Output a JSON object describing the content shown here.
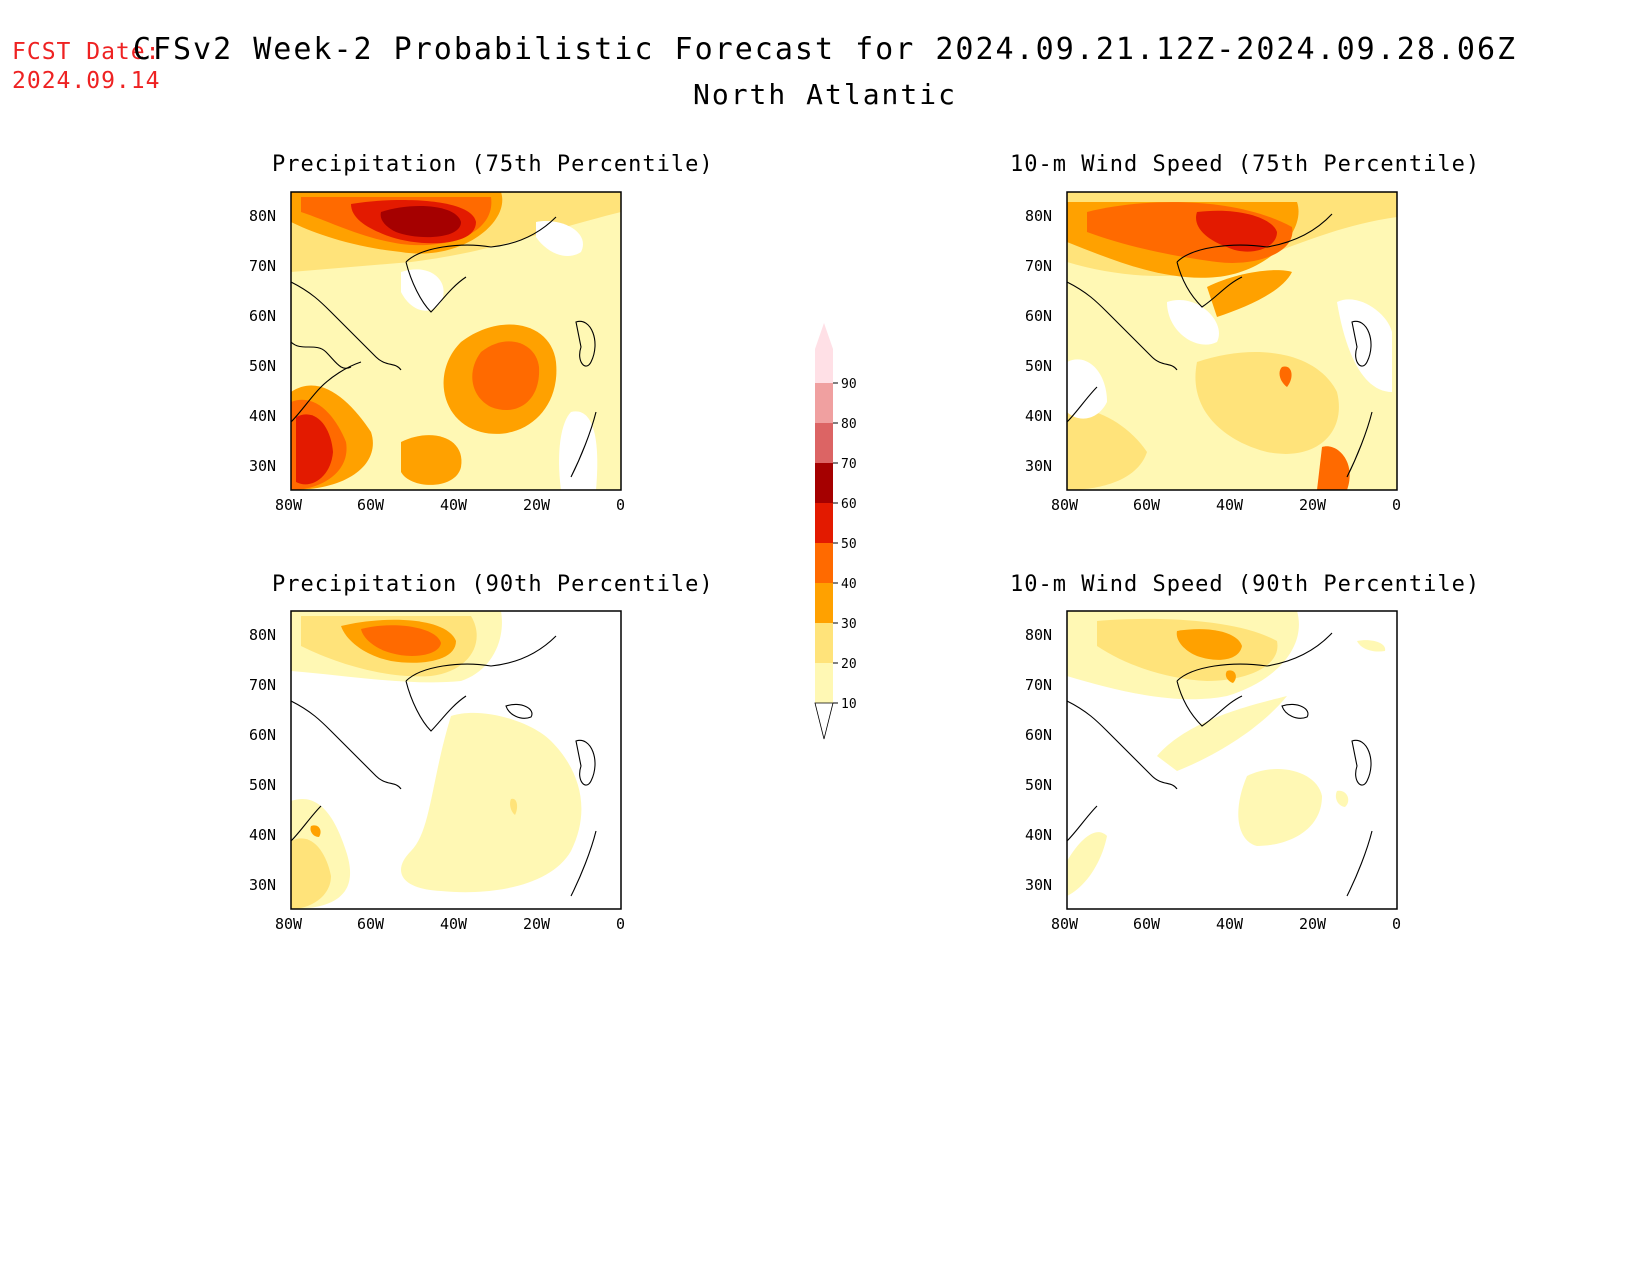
{
  "header": {
    "fcst_label": "FCST Date:",
    "fcst_date": "2024.09.14",
    "title": "CFSv2 Week-2 Probabilistic Forecast for 2024.09.21.12Z-2024.09.28.06Z",
    "subtitle": "North Atlantic"
  },
  "axes": {
    "lat_ticks": [
      "80N",
      "70N",
      "60N",
      "50N",
      "40N",
      "30N"
    ],
    "lon_ticks": [
      "80W",
      "60W",
      "40W",
      "20W",
      "0"
    ]
  },
  "panels": [
    {
      "title": "Precipitation (75th Percentile)"
    },
    {
      "title": "10-m Wind Speed (75th Percentile)"
    },
    {
      "title": "Precipitation (90th Percentile)"
    },
    {
      "title": "10-m Wind Speed (90th Percentile)"
    }
  ],
  "colorbar": {
    "levels": [
      "10",
      "20",
      "30",
      "40",
      "50",
      "60",
      "70",
      "80",
      "90"
    ],
    "colors": [
      "#fff8b4",
      "#ffe37a",
      "#ffa100",
      "#ff6a00",
      "#e31a00",
      "#a50000",
      "#dc6464",
      "#f0a0a0",
      "#ffe0e6"
    ]
  }
}
